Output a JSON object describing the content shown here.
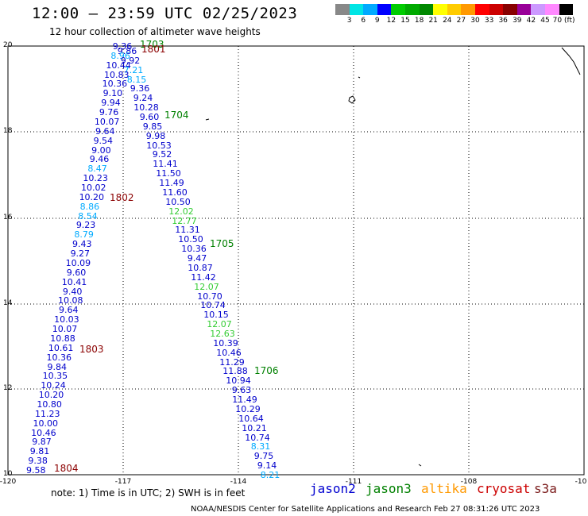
{
  "header": {
    "title": "12:00 – 23:59 UTC 02/25/2023",
    "subtitle": "12 hour collection of altimeter wave heights"
  },
  "colorbar": {
    "colors": [
      "#888888",
      "#00e5e5",
      "#00aaff",
      "#0000ff",
      "#00cc00",
      "#00aa00",
      "#008800",
      "#ffff00",
      "#ffcc00",
      "#ff9900",
      "#ff0000",
      "#cc0000",
      "#880000",
      "#990099",
      "#cc99ff",
      "#ff88ff",
      "#000000"
    ],
    "labels": [
      "3",
      "6",
      "9",
      "12",
      "15",
      "18",
      "21",
      "24",
      "27",
      "30",
      "33",
      "36",
      "39",
      "42",
      "45",
      "70 (ft)"
    ]
  },
  "axes": {
    "lat_labels": [
      "20",
      "18",
      "16",
      "14",
      "12",
      "10"
    ],
    "lon_labels": [
      "-120",
      "-117",
      "-114",
      "-111",
      "-108",
      "-10"
    ]
  },
  "track_labels": [
    {
      "text": "1703",
      "color": "#008000"
    },
    {
      "text": "1801",
      "color": "#8b0000"
    },
    {
      "text": "1704",
      "color": "#008000"
    },
    {
      "text": "1802",
      "color": "#8b0000"
    },
    {
      "text": "1705",
      "color": "#008000"
    },
    {
      "text": "1803",
      "color": "#8b0000"
    },
    {
      "text": "1706",
      "color": "#008000"
    },
    {
      "text": "1804",
      "color": "#8b0000"
    }
  ],
  "observations": {
    "track_a": [
      "9.36",
      "9.86",
      "8.96",
      "9.92",
      "10.44",
      "7.21",
      "10.83",
      "8.15",
      "10.36",
      "9.36",
      "9.10",
      "9.24",
      "9.94",
      "10.28",
      "9.76",
      "9.60",
      "10.07",
      "9.85",
      "9.64",
      "9.98",
      "9.54",
      "10.53",
      "9.00",
      "9.52",
      "9.46",
      "11.41",
      "8.47",
      "11.50",
      "10.23",
      "11.49",
      "10.02",
      "11.60",
      "10.20",
      "10.50",
      "8.86",
      "12.02",
      "8.54",
      "12.77",
      "9.23",
      "11.31",
      "8.79",
      "10.50",
      "9.43",
      "10.36",
      "9.27",
      "9.47",
      "10.09",
      "10.87",
      "9.60",
      "11.42",
      "10.41",
      "12.07",
      "9.40",
      "10.70",
      "10.08",
      "10.74",
      "9.64",
      "10.15",
      "10.03",
      "12.07",
      "10.07",
      "12.63",
      "10.88",
      "10.39",
      "10.61",
      "10.46",
      "10.36",
      "11.29",
      "9.84",
      "11.88",
      "10.35",
      "10.94",
      "10.24",
      "9.63",
      "10.20",
      "11.49",
      "10.80",
      "10.29",
      "11.23",
      "10.64",
      "10.00",
      "10.21",
      "10.46",
      "10.74",
      "9.87",
      "8.31",
      "9.81",
      "9.75",
      "9.38",
      "9.14",
      "9.58",
      "8.21"
    ]
  },
  "footer": {
    "note": "note:  1) Time is in UTC;  2) SWH is in feet",
    "credit": "NOAA/NESDIS Center for Satellite Applications and Research     Feb 27 08:31:26 UTC 2023",
    "satellites": [
      "jason2",
      "jason3",
      "altika",
      "cryosat",
      "s3a"
    ]
  }
}
